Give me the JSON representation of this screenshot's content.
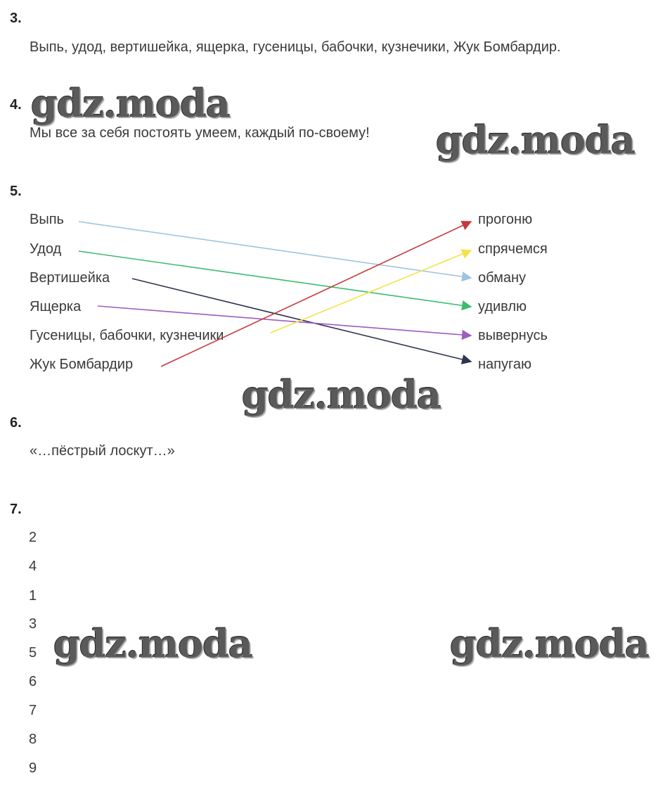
{
  "q3": {
    "number": "3.",
    "text": "Выпь, удод, вертишейка, ящерка, гусеницы, бабочки, кузнечики, Жук Бомбардир."
  },
  "q4": {
    "number": "4.",
    "text": "Мы все за себя постоять умеем, каждый по-своему!"
  },
  "q5": {
    "number": "5.",
    "left": [
      "Выпь",
      "Удод",
      "Вертишейка",
      "Ящерка",
      "Гусеницы, бабочки, кузнечики",
      "Жук Бомбардир"
    ],
    "right": [
      "прогоню",
      "спрячемся",
      "обману",
      "удивлю",
      "вывернусь",
      "напугаю"
    ],
    "matches": [
      {
        "from": 0,
        "to": 2,
        "color": "#9ec3e0"
      },
      {
        "from": 1,
        "to": 3,
        "color": "#3cbc6e"
      },
      {
        "from": 2,
        "to": 5,
        "color": "#2e3550"
      },
      {
        "from": 3,
        "to": 4,
        "color": "#9c5cc0"
      },
      {
        "from": 4,
        "to": 1,
        "color": "#f4e24a"
      },
      {
        "from": 5,
        "to": 0,
        "color": "#c63a3a"
      }
    ]
  },
  "q6": {
    "number": "6.",
    "text": "«…пёстрый лоскут…»"
  },
  "q7": {
    "number": "7.",
    "sequence": [
      "2",
      "4",
      "1",
      "3",
      "5",
      "6",
      "7",
      "8",
      "9"
    ]
  },
  "watermark": "gdz.moda"
}
